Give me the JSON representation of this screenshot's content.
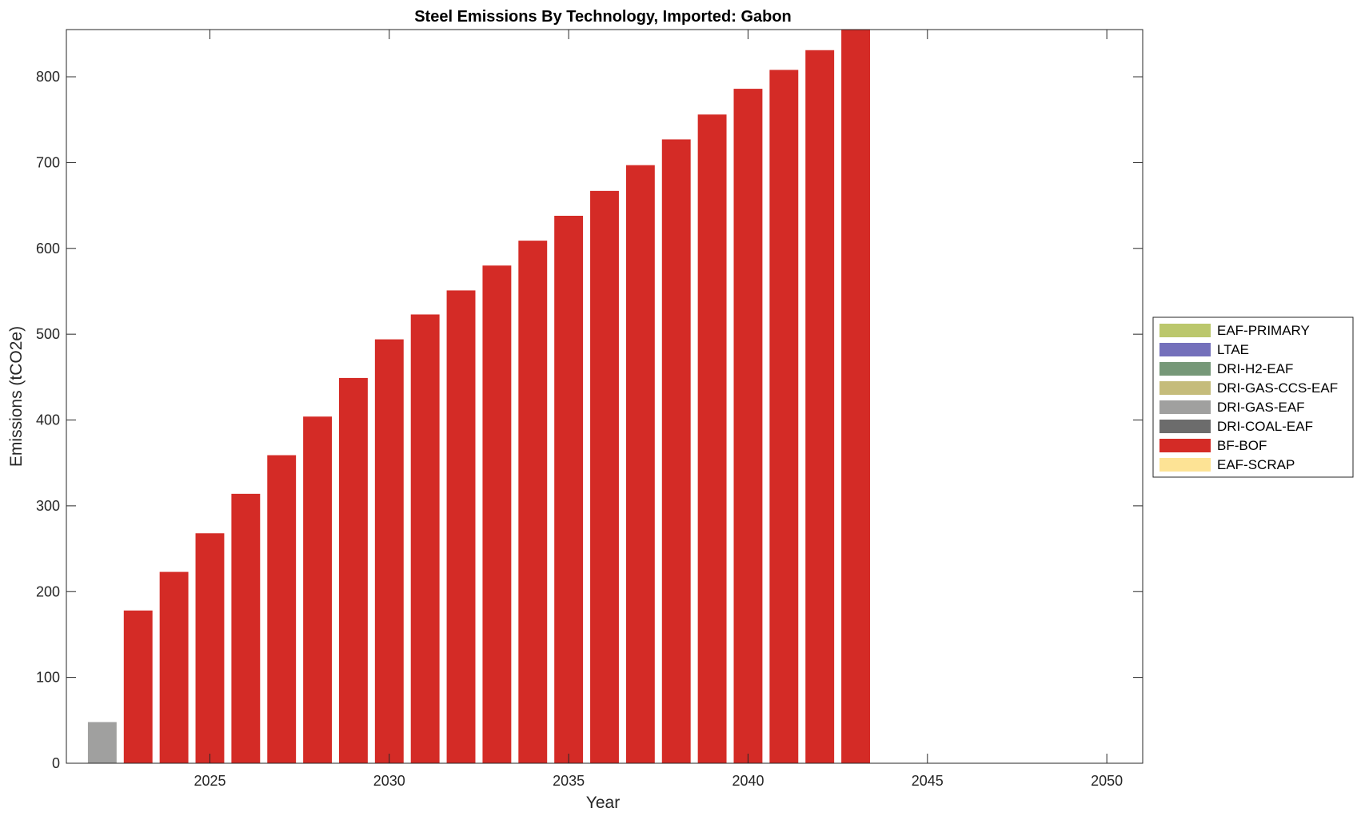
{
  "chart_data": {
    "type": "bar",
    "stacked": true,
    "title": "Steel Emissions By Technology, Imported: Gabon",
    "xlabel": "Year",
    "ylabel": "Emissions (tCO2e)",
    "xlim": [
      2021,
      2051
    ],
    "ylim": [
      0,
      855
    ],
    "xticks": [
      2025,
      2030,
      2035,
      2040,
      2045,
      2050
    ],
    "yticks": [
      0,
      100,
      200,
      300,
      400,
      500,
      600,
      700,
      800
    ],
    "grid": false,
    "legend_position": "right",
    "x": [
      2022,
      2023,
      2024,
      2025,
      2026,
      2027,
      2028,
      2029,
      2030,
      2031,
      2032,
      2033,
      2034,
      2035,
      2036,
      2037,
      2038,
      2039,
      2040,
      2041,
      2042,
      2043
    ],
    "series": [
      {
        "name": "EAF-PRIMARY",
        "color": "#bbc76c",
        "values": [
          0,
          0,
          0,
          0,
          0,
          0,
          0,
          0,
          0,
          0,
          0,
          0,
          0,
          0,
          0,
          0,
          0,
          0,
          0,
          0,
          0,
          0
        ]
      },
      {
        "name": "LTAE",
        "color": "#7470bb",
        "values": [
          0,
          0,
          0,
          0,
          0,
          0,
          0,
          0,
          0,
          0,
          0,
          0,
          0,
          0,
          0,
          0,
          0,
          0,
          0,
          0,
          0,
          0
        ]
      },
      {
        "name": "DRI-H2-EAF",
        "color": "#769878",
        "values": [
          0,
          0,
          0,
          0,
          0,
          0,
          0,
          0,
          0,
          0,
          0,
          0,
          0,
          0,
          0,
          0,
          0,
          0,
          0,
          0,
          0,
          0
        ]
      },
      {
        "name": "DRI-GAS-CCS-EAF",
        "color": "#c5bc7b",
        "values": [
          0,
          0,
          0,
          0,
          0,
          0,
          0,
          0,
          0,
          0,
          0,
          0,
          0,
          0,
          0,
          0,
          0,
          0,
          0,
          0,
          0,
          0
        ]
      },
      {
        "name": "DRI-GAS-EAF",
        "color": "#a0a09f",
        "values": [
          48,
          0,
          0,
          0,
          0,
          0,
          0,
          0,
          0,
          0,
          0,
          0,
          0,
          0,
          0,
          0,
          0,
          0,
          0,
          0,
          0,
          0
        ]
      },
      {
        "name": "DRI-COAL-EAF",
        "color": "#6c6c6c",
        "values": [
          0,
          0,
          0,
          0,
          0,
          0,
          0,
          0,
          0,
          0,
          0,
          0,
          0,
          0,
          0,
          0,
          0,
          0,
          0,
          0,
          0,
          0
        ]
      },
      {
        "name": "BF-BOF",
        "color": "#d42b26",
        "values": [
          0,
          178,
          223,
          268,
          314,
          359,
          404,
          449,
          494,
          523,
          551,
          580,
          609,
          638,
          667,
          697,
          727,
          756,
          786,
          808,
          831,
          855
        ]
      },
      {
        "name": "EAF-SCRAP",
        "color": "#fde395",
        "values": [
          0,
          0,
          0,
          0,
          0,
          0,
          0,
          0,
          0,
          0,
          0,
          0,
          0,
          0,
          0,
          0,
          0,
          0,
          0,
          0,
          0,
          0
        ]
      }
    ]
  }
}
